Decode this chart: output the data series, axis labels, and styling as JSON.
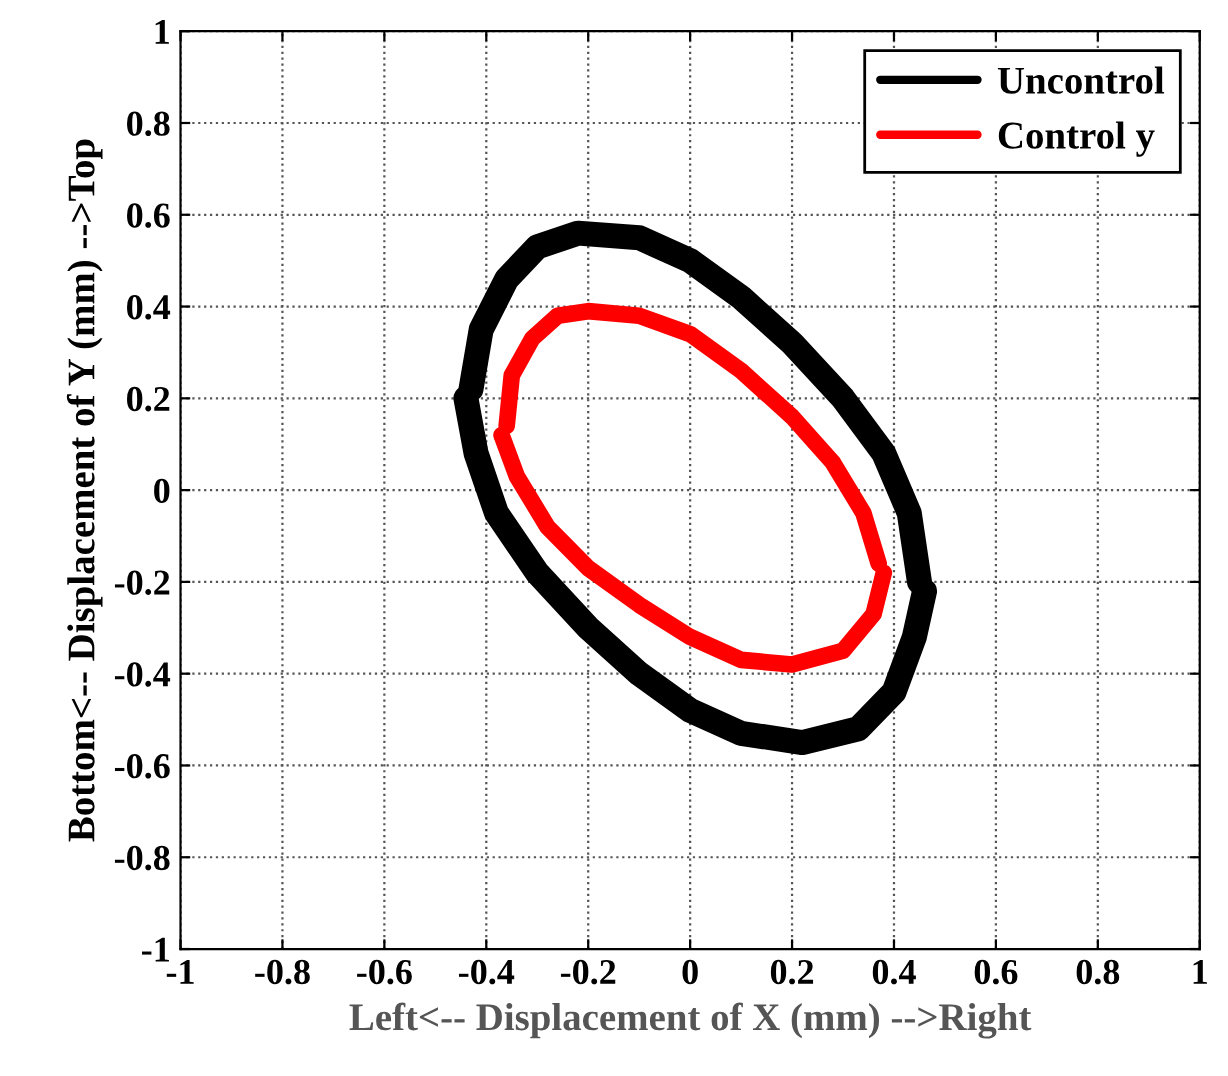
{
  "chart_data": {
    "type": "line",
    "xlabel": "Left<-- Displacement of X (mm) -->Right",
    "ylabel": "Bottom<-- Displacement of Y (mm) -->Top",
    "xlim": [
      -1,
      1
    ],
    "ylim": [
      -1,
      1
    ],
    "xticks": [
      -1,
      -0.8,
      -0.6,
      -0.4,
      -0.2,
      0,
      0.2,
      0.4,
      0.6,
      0.8,
      1
    ],
    "yticks": [
      -1,
      -0.8,
      -0.6,
      -0.4,
      -0.2,
      0,
      0.2,
      0.4,
      0.6,
      0.8,
      1
    ],
    "grid": true,
    "legend": "top right",
    "line_style": "solid",
    "series": [
      {
        "name": "Uncontrol",
        "color": "#000000",
        "x": [
          -0.43,
          -0.41,
          -0.36,
          -0.3,
          -0.22,
          -0.1,
          0.0,
          0.1,
          0.2,
          0.3,
          0.38,
          0.43,
          0.45
        ],
        "values": [
          0.22,
          0.35,
          0.46,
          0.53,
          0.56,
          0.55,
          0.5,
          0.42,
          0.32,
          0.2,
          0.08,
          -0.05,
          -0.2
        ]
      },
      {
        "color": "#000000",
        "x": [
          -0.44,
          -0.42,
          -0.38,
          -0.3,
          -0.2,
          -0.1,
          0.0,
          0.1,
          0.22,
          0.33,
          0.4,
          0.44,
          0.46
        ],
        "values": [
          0.2,
          0.08,
          -0.05,
          -0.18,
          -0.3,
          -0.4,
          -0.48,
          -0.53,
          -0.55,
          -0.52,
          -0.44,
          -0.32,
          -0.22
        ]
      },
      {
        "name": "Control y",
        "color": "#ff0000",
        "x": [
          -0.36,
          -0.35,
          -0.31,
          -0.26,
          -0.2,
          -0.1,
          0.0,
          0.1,
          0.2,
          0.28,
          0.34,
          0.37
        ],
        "values": [
          0.14,
          0.25,
          0.33,
          0.38,
          0.39,
          0.38,
          0.34,
          0.26,
          0.16,
          0.06,
          -0.05,
          -0.16
        ]
      },
      {
        "color": "#ff0000",
        "x": [
          -0.37,
          -0.34,
          -0.28,
          -0.2,
          -0.1,
          0.0,
          0.1,
          0.2,
          0.3,
          0.36,
          0.38
        ],
        "values": [
          0.12,
          0.03,
          -0.08,
          -0.17,
          -0.25,
          -0.32,
          -0.37,
          -0.38,
          -0.35,
          -0.27,
          -0.18
        ]
      }
    ]
  }
}
